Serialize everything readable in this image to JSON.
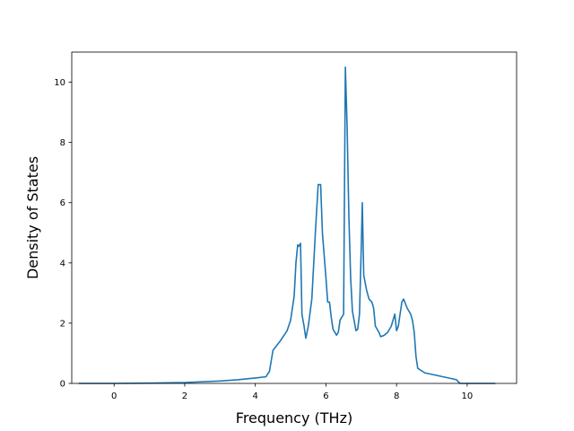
{
  "chart_data": {
    "type": "line",
    "title": "",
    "xlabel": "Frequency (THz)",
    "ylabel": "Density of States",
    "xlim": [
      -1.2,
      11.4
    ],
    "ylim": [
      0,
      11
    ],
    "xticks": [
      0,
      2,
      4,
      6,
      8,
      10
    ],
    "yticks": [
      0,
      2,
      4,
      6,
      8,
      10
    ],
    "grid": false,
    "series": [
      {
        "color": "#1f77b4",
        "points": [
          [
            -1.0,
            0.0
          ],
          [
            0.0,
            0.0
          ],
          [
            1.0,
            0.01
          ],
          [
            2.0,
            0.03
          ],
          [
            3.0,
            0.08
          ],
          [
            3.5,
            0.12
          ],
          [
            4.0,
            0.18
          ],
          [
            4.3,
            0.22
          ],
          [
            4.4,
            0.4
          ],
          [
            4.5,
            1.1
          ],
          [
            4.7,
            1.4
          ],
          [
            4.9,
            1.75
          ],
          [
            5.0,
            2.1
          ],
          [
            5.1,
            2.9
          ],
          [
            5.15,
            4.0
          ],
          [
            5.2,
            4.6
          ],
          [
            5.23,
            4.55
          ],
          [
            5.28,
            4.65
          ],
          [
            5.32,
            2.3
          ],
          [
            5.38,
            1.9
          ],
          [
            5.43,
            1.5
          ],
          [
            5.5,
            1.9
          ],
          [
            5.6,
            2.8
          ],
          [
            5.7,
            5.0
          ],
          [
            5.78,
            6.6
          ],
          [
            5.85,
            6.6
          ],
          [
            5.9,
            5.0
          ],
          [
            6.0,
            3.5
          ],
          [
            6.05,
            2.7
          ],
          [
            6.1,
            2.7
          ],
          [
            6.15,
            2.2
          ],
          [
            6.2,
            1.8
          ],
          [
            6.3,
            1.6
          ],
          [
            6.35,
            1.7
          ],
          [
            6.4,
            2.1
          ],
          [
            6.5,
            2.3
          ],
          [
            6.55,
            10.5
          ],
          [
            6.6,
            8.5
          ],
          [
            6.65,
            5.5
          ],
          [
            6.7,
            3.5
          ],
          [
            6.75,
            2.4
          ],
          [
            6.85,
            1.75
          ],
          [
            6.9,
            1.8
          ],
          [
            6.95,
            2.3
          ],
          [
            7.0,
            4.5
          ],
          [
            7.03,
            6.0
          ],
          [
            7.07,
            3.6
          ],
          [
            7.15,
            3.1
          ],
          [
            7.22,
            2.8
          ],
          [
            7.3,
            2.7
          ],
          [
            7.35,
            2.5
          ],
          [
            7.4,
            1.9
          ],
          [
            7.5,
            1.7
          ],
          [
            7.55,
            1.55
          ],
          [
            7.65,
            1.6
          ],
          [
            7.75,
            1.7
          ],
          [
            7.85,
            1.9
          ],
          [
            7.95,
            2.3
          ],
          [
            8.0,
            1.75
          ],
          [
            8.05,
            1.9
          ],
          [
            8.1,
            2.3
          ],
          [
            8.15,
            2.7
          ],
          [
            8.2,
            2.8
          ],
          [
            8.3,
            2.5
          ],
          [
            8.4,
            2.3
          ],
          [
            8.45,
            2.1
          ],
          [
            8.5,
            1.7
          ],
          [
            8.55,
            0.9
          ],
          [
            8.6,
            0.5
          ],
          [
            8.8,
            0.35
          ],
          [
            9.2,
            0.25
          ],
          [
            9.6,
            0.15
          ],
          [
            9.7,
            0.12
          ],
          [
            9.75,
            0.05
          ],
          [
            9.8,
            0.0
          ],
          [
            10.8,
            0.0
          ]
        ]
      }
    ]
  }
}
